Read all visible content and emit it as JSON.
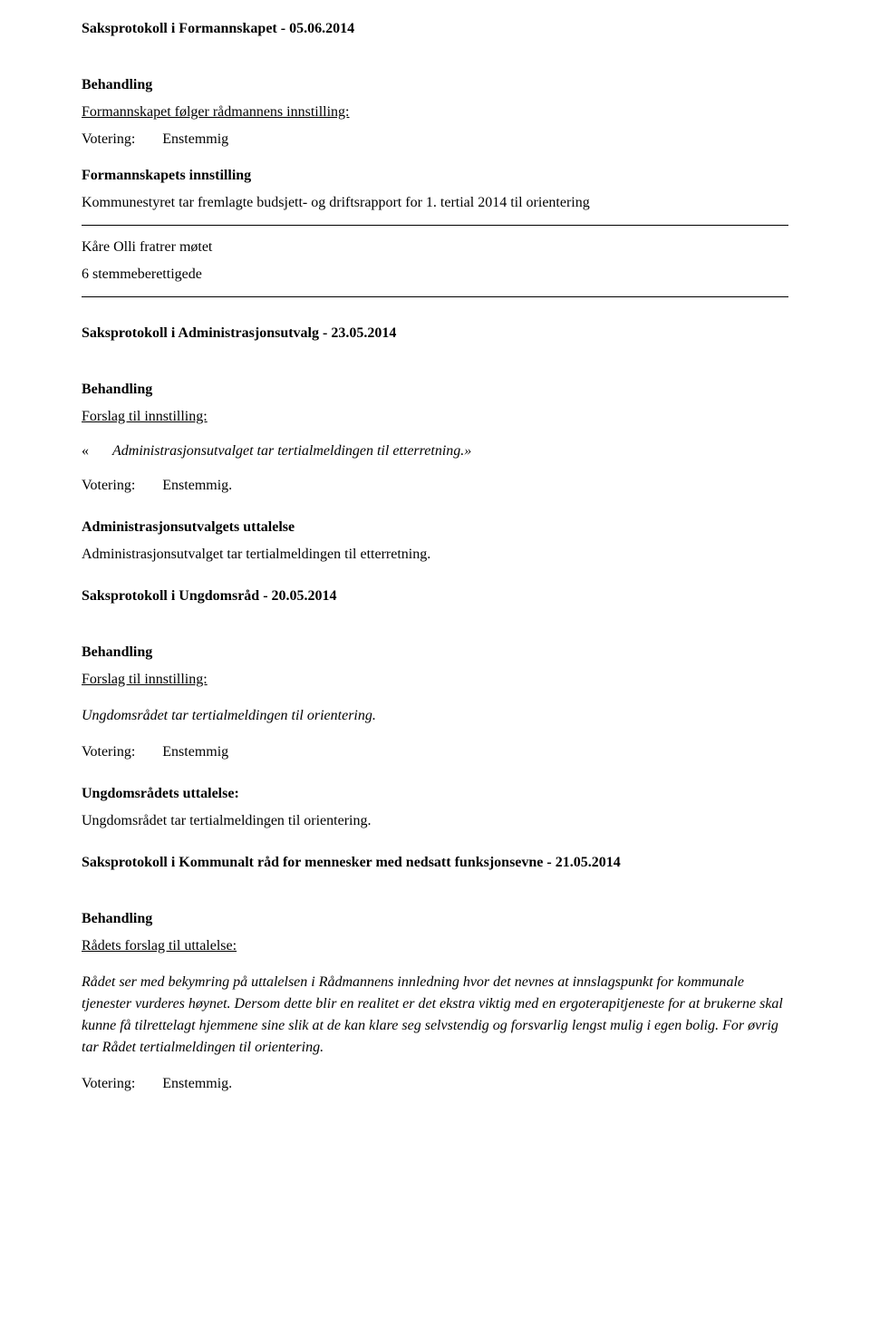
{
  "s1": {
    "title": "Saksprotokoll i Formannskapet - 05.06.2014",
    "behandling": "Behandling",
    "line1": "Formannskapet følger rådmannens innstilling:",
    "votering_label": "Votering:",
    "votering_value": "Enstemmig",
    "sub_title": "Formannskapets innstilling",
    "sub_text": "Kommunestyret tar fremlagte budsjett- og driftsrapport for 1. tertial 2014 til orientering"
  },
  "attend": {
    "line1": "Kåre Olli fratrer møtet",
    "line2": "6 stemmeberettigede"
  },
  "s2": {
    "title": "Saksprotokoll i Administrasjonsutvalg - 23.05.2014",
    "behandling": "Behandling",
    "forslag": "Forslag til innstilling:",
    "marker": "«",
    "quote": "Administrasjonsutvalget tar tertialmeldingen til etterretning.»",
    "votering_label": "Votering:",
    "votering_value": "Enstemmig.",
    "sub_title": "Administrasjonsutvalgets uttalelse",
    "sub_text": "Administrasjonsutvalget tar tertialmeldingen til etterretning."
  },
  "s3": {
    "title": "Saksprotokoll i Ungdomsråd - 20.05.2014",
    "behandling": "Behandling",
    "forslag": "Forslag til innstilling:",
    "italic_line": "Ungdomsrådet tar tertialmeldingen til orientering.",
    "votering_label": "Votering:",
    "votering_value": "Enstemmig",
    "sub_title": "Ungdomsrådets uttalelse:",
    "sub_text": "Ungdomsrådet tar tertialmeldingen til orientering."
  },
  "s4": {
    "title": "Saksprotokoll i Kommunalt råd for mennesker med nedsatt funksjonsevne - 21.05.2014",
    "behandling": "Behandling",
    "forslag": "Rådets forslag til uttalelse:",
    "italic_text": "Rådet ser med bekymring på uttalelsen i Rådmannens innledning hvor det nevnes at innslagspunkt for kommunale tjenester vurderes høynet.  Dersom dette blir en realitet er det ekstra viktig med en ergoterapitjeneste for at brukerne skal kunne få tilrettelagt hjemmene sine slik at de kan klare seg selvstendig og forsvarlig lengst mulig i egen bolig. For øvrig tar Rådet tertialmeldingen til orientering.",
    "votering_label": "Votering:",
    "votering_value": "Enstemmig."
  }
}
